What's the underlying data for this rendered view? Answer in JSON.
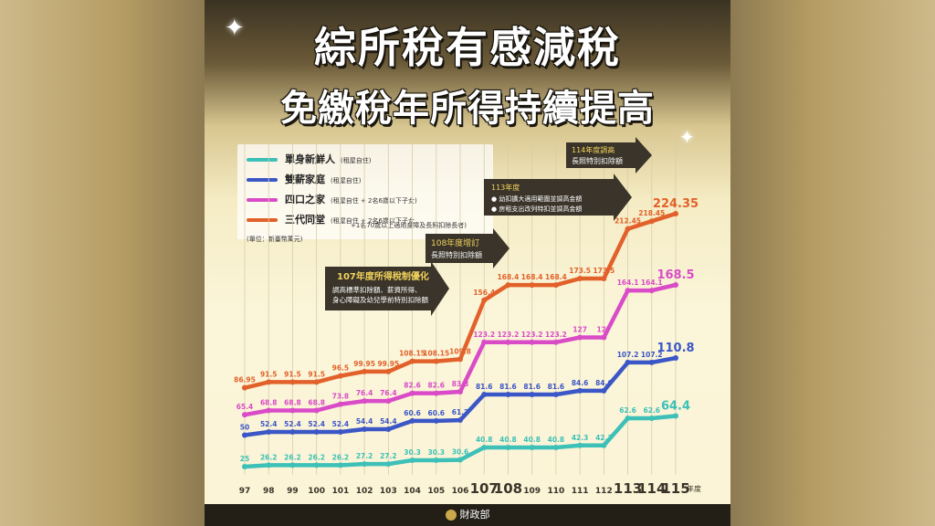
{
  "title_line1": "綜所稅有感減稅",
  "title_line2": "免繳稅年所得持續提高",
  "unit_note": "(單位：新臺幣萬元)",
  "footer_label": "財政部",
  "legend": [
    {
      "name": "單身新鮮人",
      "note": "(租屋自住)",
      "color": "#3cc0b7"
    },
    {
      "name": "雙薪家庭",
      "note": "(租屋自住)",
      "color": "#3b56c6"
    },
    {
      "name": "四口之家",
      "note": "(租屋自住 + 2名6歲以下子女)",
      "color": "#d94bc7"
    },
    {
      "name": "三代同堂",
      "note": "(租屋自住 + 2名6歲以下子女",
      "note2": "+1名70歲以上適用身障及長照扣除長者)",
      "color": "#e2612a"
    }
  ],
  "annotations": [
    {
      "title": "107年度所得稅制優化",
      "lines": [
        "調高標準扣除額、薪資所得、",
        "身心障礙及幼兒學前特別扣除額"
      ]
    },
    {
      "title": "108年度增訂",
      "lines": [
        "長照特別扣除額"
      ]
    },
    {
      "title": "113年度",
      "lines": [
        "● 幼扣擴大適用範圍並調高金額",
        "● 房租支出改列特扣並調高金額"
      ]
    },
    {
      "title": "114年度調高",
      "lines": [
        "長照特別扣除額"
      ]
    }
  ],
  "chart_data": {
    "type": "line",
    "x": [
      "97",
      "98",
      "99",
      "100",
      "101",
      "102",
      "103",
      "104",
      "105",
      "106",
      "107",
      "108",
      "109",
      "110",
      "111",
      "112",
      "113",
      "114",
      "115"
    ],
    "xlabel": "年度",
    "highlight_x": [
      "107",
      "108",
      "113",
      "114",
      "115"
    ],
    "series": [
      {
        "name": "單身新鮮人",
        "color": "#3cc0b7",
        "values": [
          25,
          26.2,
          26.2,
          26.2,
          26.2,
          27.2,
          27.2,
          30.3,
          30.3,
          30.6,
          40.8,
          40.8,
          40.8,
          40.8,
          42.3,
          42.3,
          62.6,
          62.6,
          64.4
        ],
        "labels": [
          "25",
          "26.2",
          "26.2",
          "26.2",
          "26.2",
          "27.2",
          "27.2",
          "30.3",
          "30.3",
          "30.6",
          "40.8",
          "40.8",
          "40.8",
          "40.8",
          "42.3",
          "42.3",
          "62.6",
          "62.6",
          "64.4"
        ]
      },
      {
        "name": "雙薪家庭",
        "color": "#3b56c6",
        "values": [
          50,
          52.4,
          52.4,
          52.4,
          52.4,
          54.4,
          54.4,
          60.6,
          60.6,
          61.2,
          81.6,
          81.6,
          81.6,
          81.6,
          84.6,
          84.6,
          107.2,
          107.2,
          110.8
        ],
        "labels": [
          "50",
          "52.4",
          "52.4",
          "52.4",
          "52.4",
          "54.4",
          "54.4",
          "60.6",
          "60.6",
          "61.2",
          "81.6",
          "81.6",
          "81.6",
          "81.6",
          "84.6",
          "84.6",
          "107.2",
          "107.2",
          "110.8"
        ]
      },
      {
        "name": "四口之家",
        "color": "#d94bc7",
        "values": [
          65.4,
          68.8,
          68.8,
          68.8,
          73.8,
          76.4,
          76.4,
          82.6,
          82.6,
          83.8,
          123.2,
          123.2,
          123.2,
          123.2,
          127,
          127,
          164.1,
          164.1,
          168.5
        ],
        "labels": [
          "65.4",
          "68.8",
          "68.8",
          "68.8",
          "73.8",
          "76.4",
          "76.4",
          "82.6",
          "82.6",
          "83.8",
          "123.2",
          "123.2",
          "123.2",
          "123.2",
          "127",
          "127",
          "164.1",
          "164.1",
          "168.5"
        ]
      },
      {
        "name": "三代同堂",
        "color": "#e2612a",
        "values": [
          86.95,
          91.5,
          91.5,
          91.5,
          96.5,
          99.95,
          99.95,
          108.15,
          108.15,
          109.8,
          156.4,
          168.4,
          168.4,
          168.4,
          173.5,
          173.5,
          212.45,
          218.45,
          224.35
        ],
        "labels": [
          "86.95",
          "91.5",
          "91.5",
          "91.5",
          "96.5",
          "99.95",
          "99.95",
          "108.15",
          "108.15",
          "109.8",
          "156.4",
          "168.4",
          "168.4",
          "168.4",
          "173.5",
          "173.5",
          "212.45",
          "218.45",
          "224.35"
        ]
      }
    ]
  }
}
